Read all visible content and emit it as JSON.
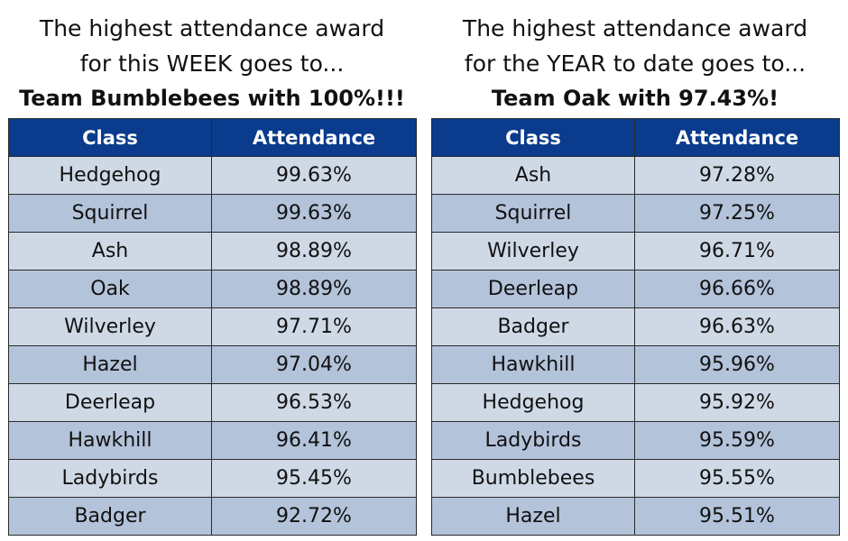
{
  "week": {
    "heading_line1": "The highest attendance award",
    "heading_line2": "for this WEEK goes to...",
    "winner": "Team Bumblebees with 100%!!!",
    "columns": [
      "Class",
      "Attendance"
    ],
    "rows": [
      {
        "class": "Hedgehog",
        "attendance": "99.63%"
      },
      {
        "class": "Squirrel",
        "attendance": "99.63%"
      },
      {
        "class": "Ash",
        "attendance": "98.89%"
      },
      {
        "class": "Oak",
        "attendance": "98.89%"
      },
      {
        "class": "Wilverley",
        "attendance": "97.71%"
      },
      {
        "class": "Hazel",
        "attendance": "97.04%"
      },
      {
        "class": "Deerleap",
        "attendance": "96.53%"
      },
      {
        "class": "Hawkhill",
        "attendance": "96.41%"
      },
      {
        "class": "Ladybirds",
        "attendance": "95.45%"
      },
      {
        "class": "Badger",
        "attendance": "92.72%"
      }
    ]
  },
  "year": {
    "heading_line1": "The highest attendance award",
    "heading_line2": "for the YEAR to date goes to...",
    "winner": "Team Oak with 97.43%!",
    "columns": [
      "Class",
      "Attendance"
    ],
    "rows": [
      {
        "class": "Ash",
        "attendance": "97.28%"
      },
      {
        "class": "Squirrel",
        "attendance": "97.25%"
      },
      {
        "class": "Wilverley",
        "attendance": "96.71%"
      },
      {
        "class": "Deerleap",
        "attendance": "96.66%"
      },
      {
        "class": "Badger",
        "attendance": "96.63%"
      },
      {
        "class": "Hawkhill",
        "attendance": "95.96%"
      },
      {
        "class": "Hedgehog",
        "attendance": "95.92%"
      },
      {
        "class": "Ladybirds",
        "attendance": "95.59%"
      },
      {
        "class": "Bumblebees",
        "attendance": "95.55%"
      },
      {
        "class": "Hazel",
        "attendance": "95.51%"
      }
    ]
  },
  "colors": {
    "header_background": "#0a3b8c",
    "header_text": "#ffffff",
    "row_light": "#cfd9e6",
    "row_dark": "#b3c3da"
  }
}
